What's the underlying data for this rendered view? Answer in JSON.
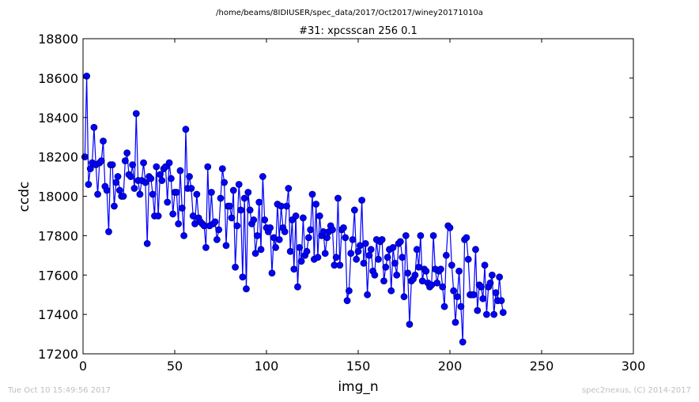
{
  "header": {
    "path": "/home/beams/8IDIUSER/spec_data/2017/Oct2017/winey20171010a",
    "title": "#31: xpcsscan 256 0.1"
  },
  "footer": {
    "timestamp": "Tue Oct 10 15:49:56 2017",
    "credit": "spec2nexus, (C) 2014-2017"
  },
  "colors": {
    "series": "#0000ff",
    "marker_edge": "#000080",
    "footer_text": "#bfbfbf"
  },
  "chart_data": {
    "type": "line",
    "title": "#31: xpcsscan 256 0.1",
    "xlabel": "img_n",
    "ylabel": "ccdc",
    "xlim": [
      0,
      300
    ],
    "ylim": [
      17200,
      18800
    ],
    "xticks": [
      0,
      50,
      100,
      150,
      200,
      250,
      300
    ],
    "yticks": [
      17200,
      17400,
      17600,
      17800,
      18000,
      18200,
      18400,
      18600,
      18800
    ],
    "xticklabels": [
      "0",
      "50",
      "100",
      "150",
      "200",
      "250",
      "300"
    ],
    "yticklabels": [
      "17200",
      "17400",
      "17600",
      "17800",
      "18000",
      "18200",
      "18400",
      "18600",
      "18800"
    ],
    "grid": false,
    "markers": true,
    "series": [
      {
        "x_start": 1,
        "x_step": 1,
        "values": [
          18200,
          18610,
          18060,
          18140,
          18170,
          18350,
          18160,
          18010,
          18170,
          18180,
          18280,
          18050,
          18030,
          17820,
          18160,
          18160,
          17950,
          18070,
          18100,
          18030,
          18000,
          18000,
          18180,
          18220,
          18110,
          18100,
          18160,
          18040,
          18420,
          18080,
          18010,
          18080,
          18170,
          18070,
          17760,
          18100,
          18090,
          18010,
          17900,
          18150,
          17900,
          18110,
          18080,
          18140,
          18150,
          17970,
          18170,
          18090,
          17910,
          18020,
          18020,
          17860,
          18130,
          17940,
          17800,
          18340,
          18040,
          18100,
          18040,
          17900,
          17860,
          18010,
          17890,
          17870,
          17860,
          17850,
          17740,
          18150,
          17850,
          18020,
          17860,
          17870,
          17780,
          17830,
          17990,
          18140,
          18070,
          17750,
          17950,
          17950,
          17890,
          18030,
          17640,
          17850,
          18060,
          17930,
          17590,
          17990,
          17530,
          18020,
          17930,
          17860,
          17880,
          17710,
          17800,
          17970,
          17730,
          18100,
          17880,
          17840,
          17820,
          17840,
          17610,
          17790,
          17740,
          17960,
          17780,
          17950,
          17840,
          17820,
          17950,
          18040,
          17720,
          17880,
          17630,
          17900,
          17540,
          17740,
          17670,
          17890,
          17700,
          17720,
          17790,
          17830,
          18010,
          17680,
          17960,
          17690,
          17900,
          17800,
          17820,
          17710,
          17790,
          17820,
          17850,
          17830,
          17650,
          17690,
          17990,
          17650,
          17830,
          17840,
          17790,
          17470,
          17520,
          17710,
          17780,
          17930,
          17680,
          17720,
          17750,
          17980,
          17660,
          17760,
          17500,
          17700,
          17730,
          17620,
          17600,
          17780,
          17680,
          17770,
          17780,
          17570,
          17640,
          17690,
          17730,
          17520,
          17740,
          17660,
          17600,
          17760,
          17770,
          17690,
          17490,
          17800,
          17610,
          17350,
          17570,
          17580,
          17600,
          17730,
          17640,
          17800,
          17570,
          17630,
          17620,
          17560,
          17540,
          17550,
          17800,
          17630,
          17560,
          17620,
          17630,
          17540,
          17440,
          17700,
          17850,
          17840,
          17650,
          17520,
          17360,
          17490,
          17620,
          17440,
          17260,
          17780,
          17790,
          17680,
          17500,
          17500,
          17500,
          17730,
          17420,
          17550,
          17540,
          17480,
          17650,
          17400,
          17540,
          17560,
          17600,
          17400,
          17510,
          17470,
          17590,
          17470,
          17410
        ]
      }
    ]
  }
}
